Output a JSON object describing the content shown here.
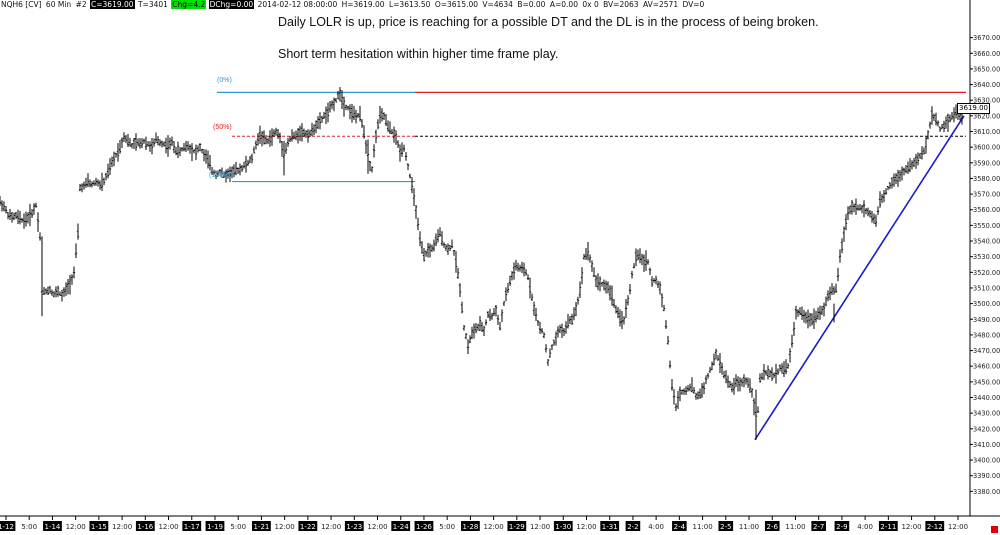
{
  "header": {
    "symbol": "NQH6 [CV]",
    "interval": "60 Min",
    "tag": "#2",
    "close": "C=3619.00",
    "ticks": "T=3401",
    "chg": "Chg=4.2",
    "dchg": "DChg=0.00",
    "datetime": "2014-02-12 08:00:00",
    "high": "H=3619.00",
    "low": "L=3613.50",
    "open": "O=3615.00",
    "volume": "V=4634",
    "bid": "B=0.00",
    "ask": "A=0.00",
    "ox": "0x 0",
    "bv": "BV=2063",
    "av": "AV=2571",
    "dv": "DV=0"
  },
  "annotations": {
    "line1": "Daily LOLR is up, price is reaching for a possible DT and the DL is in the process of being broken.",
    "line2": "Short term hesitation within higher time frame play."
  },
  "fib_labels": {
    "top": "(0%)",
    "mid": "(50%)",
    "bottom": "(100%)"
  },
  "price_tag": "3619.00",
  "colors": {
    "fib_line": "#3399cc",
    "resistance": "#e02020",
    "trendline": "#1a1acc",
    "fib_mid": "#e02020"
  },
  "chart_data": {
    "type": "candlestick-bar",
    "ylim": [
      3370,
      3680
    ],
    "y_ticks": [
      3380,
      3390,
      3400,
      3410,
      3420,
      3430,
      3440,
      3450,
      3460,
      3470,
      3480,
      3490,
      3500,
      3510,
      3520,
      3530,
      3540,
      3550,
      3560,
      3570,
      3580,
      3590,
      3600,
      3610,
      3620,
      3630,
      3640,
      3650,
      3660,
      3670
    ],
    "y_tick_labels": [
      "3380.00",
      "3390.00",
      "3400.00",
      "3410.00",
      "3420.00",
      "3430.00",
      "3440.00",
      "3450.00",
      "3460.00",
      "3470.00",
      "3480.00",
      "3490.00",
      "3500.00",
      "3510.00",
      "3520.00",
      "3530.00",
      "3540.00",
      "3550.00",
      "3560.00",
      "3570.00",
      "3580.00",
      "3590.00",
      "3600.00",
      "3610.00",
      "3620.00",
      "3630.00",
      "3640.00",
      "3650.00",
      "3660.00",
      "3670.00"
    ],
    "x_labels": [
      {
        "t": "1-12",
        "d": 1
      },
      {
        "t": "5:00",
        "d": 0
      },
      {
        "t": "1-14",
        "d": 1
      },
      {
        "t": "12:00",
        "d": 0
      },
      {
        "t": "1-15",
        "d": 1
      },
      {
        "t": "12:00",
        "d": 0
      },
      {
        "t": "1-16",
        "d": 1
      },
      {
        "t": "12:00",
        "d": 0
      },
      {
        "t": "1-17",
        "d": 1
      },
      {
        "t": "1-19",
        "d": 1
      },
      {
        "t": "5:00",
        "d": 0
      },
      {
        "t": "1-21",
        "d": 1
      },
      {
        "t": "12:00",
        "d": 0
      },
      {
        "t": "1-22",
        "d": 1
      },
      {
        "t": "12:00",
        "d": 0
      },
      {
        "t": "1-23",
        "d": 1
      },
      {
        "t": "12:00",
        "d": 0
      },
      {
        "t": "1-24",
        "d": 1
      },
      {
        "t": "1-26",
        "d": 1
      },
      {
        "t": "5:00",
        "d": 0
      },
      {
        "t": "1-28",
        "d": 1
      },
      {
        "t": "12:00",
        "d": 0
      },
      {
        "t": "1-29",
        "d": 1
      },
      {
        "t": "12:00",
        "d": 0
      },
      {
        "t": "1-30",
        "d": 1
      },
      {
        "t": "12:00",
        "d": 0
      },
      {
        "t": "1-31",
        "d": 1
      },
      {
        "t": "2-2",
        "d": 1
      },
      {
        "t": "4:00",
        "d": 0
      },
      {
        "t": "2-4",
        "d": 1
      },
      {
        "t": "11:00",
        "d": 0
      },
      {
        "t": "2-5",
        "d": 1
      },
      {
        "t": "11:00",
        "d": 0
      },
      {
        "t": "2-6",
        "d": 1
      },
      {
        "t": "11:00",
        "d": 0
      },
      {
        "t": "2-7",
        "d": 1
      },
      {
        "t": "2-9",
        "d": 1
      },
      {
        "t": "4:00",
        "d": 0
      },
      {
        "t": "2-11",
        "d": 1
      },
      {
        "t": "12:00",
        "d": 0
      },
      {
        "t": "2-12",
        "d": 1
      },
      {
        "t": "12:00",
        "d": 0
      }
    ],
    "price_path": [
      [
        0,
        3565
      ],
      [
        4,
        3562
      ],
      [
        8,
        3557
      ],
      [
        12,
        3555
      ],
      [
        16,
        3556
      ],
      [
        20,
        3554
      ],
      [
        24,
        3553
      ],
      [
        28,
        3555
      ],
      [
        32,
        3558
      ],
      [
        36,
        3563
      ],
      [
        40,
        3543
      ],
      [
        42,
        3507
      ],
      [
        46,
        3508
      ],
      [
        50,
        3509
      ],
      [
        54,
        3506
      ],
      [
        58,
        3508
      ],
      [
        62,
        3505
      ],
      [
        66,
        3509
      ],
      [
        70,
        3513
      ],
      [
        74,
        3520
      ],
      [
        78,
        3545
      ],
      [
        80,
        3574
      ],
      [
        84,
        3575
      ],
      [
        88,
        3578
      ],
      [
        92,
        3576
      ],
      [
        96,
        3578
      ],
      [
        100,
        3576
      ],
      [
        104,
        3578
      ],
      [
        108,
        3584
      ],
      [
        112,
        3590
      ],
      [
        116,
        3595
      ],
      [
        120,
        3600
      ],
      [
        124,
        3607
      ],
      [
        128,
        3604
      ],
      [
        132,
        3601
      ],
      [
        136,
        3603
      ],
      [
        140,
        3602
      ],
      [
        144,
        3604
      ],
      [
        148,
        3602
      ],
      [
        152,
        3600
      ],
      [
        156,
        3605
      ],
      [
        160,
        3603
      ],
      [
        164,
        3602
      ],
      [
        168,
        3601
      ],
      [
        172,
        3603
      ],
      [
        176,
        3598
      ],
      [
        180,
        3597
      ],
      [
        184,
        3600
      ],
      [
        188,
        3601
      ],
      [
        192,
        3598
      ],
      [
        196,
        3597
      ],
      [
        200,
        3600
      ],
      [
        204,
        3595
      ],
      [
        208,
        3592
      ],
      [
        212,
        3585
      ],
      [
        216,
        3583
      ],
      [
        220,
        3584
      ],
      [
        224,
        3582
      ],
      [
        228,
        3583
      ],
      [
        232,
        3584
      ],
      [
        236,
        3585
      ],
      [
        240,
        3586
      ],
      [
        244,
        3588
      ],
      [
        248,
        3590
      ],
      [
        252,
        3593
      ],
      [
        256,
        3602
      ],
      [
        260,
        3608
      ],
      [
        264,
        3605
      ],
      [
        268,
        3604
      ],
      [
        272,
        3607
      ],
      [
        276,
        3610
      ],
      [
        280,
        3606
      ],
      [
        284,
        3595
      ],
      [
        288,
        3603
      ],
      [
        292,
        3607
      ],
      [
        296,
        3607
      ],
      [
        300,
        3610
      ],
      [
        304,
        3609
      ],
      [
        308,
        3608
      ],
      [
        312,
        3610
      ],
      [
        316,
        3614
      ],
      [
        320,
        3616
      ],
      [
        324,
        3620
      ],
      [
        328,
        3622
      ],
      [
        332,
        3627
      ],
      [
        336,
        3630
      ],
      [
        340,
        3635
      ],
      [
        344,
        3627
      ],
      [
        348,
        3625
      ],
      [
        352,
        3622
      ],
      [
        356,
        3620
      ],
      [
        360,
        3620
      ],
      [
        364,
        3610
      ],
      [
        368,
        3592
      ],
      [
        372,
        3586
      ],
      [
        376,
        3608
      ],
      [
        380,
        3620
      ],
      [
        384,
        3620
      ],
      [
        388,
        3613
      ],
      [
        392,
        3610
      ],
      [
        396,
        3606
      ],
      [
        400,
        3597
      ],
      [
        404,
        3600
      ],
      [
        408,
        3588
      ],
      [
        412,
        3575
      ],
      [
        416,
        3560
      ],
      [
        420,
        3540
      ],
      [
        424,
        3530
      ],
      [
        428,
        3534
      ],
      [
        432,
        3535
      ],
      [
        436,
        3540
      ],
      [
        440,
        3545
      ],
      [
        444,
        3538
      ],
      [
        448,
        3534
      ],
      [
        452,
        3538
      ],
      [
        456,
        3527
      ],
      [
        460,
        3510
      ],
      [
        464,
        3485
      ],
      [
        468,
        3473
      ],
      [
        472,
        3481
      ],
      [
        476,
        3484
      ],
      [
        480,
        3486
      ],
      [
        484,
        3483
      ],
      [
        488,
        3493
      ],
      [
        492,
        3492
      ],
      [
        496,
        3496
      ],
      [
        500,
        3485
      ],
      [
        504,
        3500
      ],
      [
        508,
        3510
      ],
      [
        512,
        3518
      ],
      [
        516,
        3524
      ],
      [
        520,
        3522
      ],
      [
        524,
        3522
      ],
      [
        528,
        3517
      ],
      [
        532,
        3504
      ],
      [
        536,
        3492
      ],
      [
        540,
        3484
      ],
      [
        544,
        3480
      ],
      [
        548,
        3463
      ],
      [
        552,
        3472
      ],
      [
        556,
        3478
      ],
      [
        560,
        3484
      ],
      [
        564,
        3482
      ],
      [
        568,
        3488
      ],
      [
        572,
        3490
      ],
      [
        576,
        3497
      ],
      [
        580,
        3508
      ],
      [
        584,
        3530
      ],
      [
        588,
        3534
      ],
      [
        592,
        3524
      ],
      [
        596,
        3515
      ],
      [
        600,
        3513
      ],
      [
        604,
        3512
      ],
      [
        608,
        3510
      ],
      [
        612,
        3505
      ],
      [
        616,
        3496
      ],
      [
        620,
        3490
      ],
      [
        624,
        3490
      ],
      [
        628,
        3502
      ],
      [
        632,
        3518
      ],
      [
        636,
        3530
      ],
      [
        640,
        3530
      ],
      [
        644,
        3527
      ],
      [
        648,
        3527
      ],
      [
        652,
        3514
      ],
      [
        656,
        3515
      ],
      [
        660,
        3510
      ],
      [
        664,
        3497
      ],
      [
        668,
        3476
      ],
      [
        672,
        3447
      ],
      [
        676,
        3434
      ],
      [
        680,
        3443
      ],
      [
        684,
        3444
      ],
      [
        688,
        3446
      ],
      [
        692,
        3447
      ],
      [
        696,
        3441
      ],
      [
        700,
        3442
      ],
      [
        704,
        3447
      ],
      [
        708,
        3454
      ],
      [
        712,
        3460
      ],
      [
        716,
        3468
      ],
      [
        720,
        3462
      ],
      [
        724,
        3455
      ],
      [
        728,
        3450
      ],
      [
        732,
        3446
      ],
      [
        736,
        3450
      ],
      [
        740,
        3448
      ],
      [
        744,
        3451
      ],
      [
        748,
        3450
      ],
      [
        752,
        3444
      ],
      [
        756,
        3428
      ],
      [
        758,
        3432
      ],
      [
        760,
        3452
      ],
      [
        764,
        3455
      ],
      [
        768,
        3456
      ],
      [
        772,
        3454
      ],
      [
        776,
        3455
      ],
      [
        780,
        3459
      ],
      [
        784,
        3458
      ],
      [
        788,
        3460
      ],
      [
        792,
        3475
      ],
      [
        796,
        3494
      ],
      [
        800,
        3495
      ],
      [
        804,
        3491
      ],
      [
        808,
        3491
      ],
      [
        812,
        3490
      ],
      [
        816,
        3492
      ],
      [
        820,
        3495
      ],
      [
        824,
        3497
      ],
      [
        828,
        3505
      ],
      [
        832,
        3508
      ],
      [
        836,
        3509
      ],
      [
        840,
        3530
      ],
      [
        844,
        3545
      ],
      [
        848,
        3558
      ],
      [
        852,
        3562
      ],
      [
        856,
        3562
      ],
      [
        860,
        3561
      ],
      [
        864,
        3560
      ],
      [
        868,
        3559
      ],
      [
        872,
        3555
      ],
      [
        876,
        3553
      ],
      [
        880,
        3565
      ],
      [
        884,
        3569
      ],
      [
        888,
        3574
      ],
      [
        892,
        3578
      ],
      [
        896,
        3580
      ],
      [
        900,
        3582
      ],
      [
        904,
        3585
      ],
      [
        908,
        3587
      ],
      [
        912,
        3589
      ],
      [
        916,
        3591
      ],
      [
        920,
        3594
      ],
      [
        924,
        3597
      ],
      [
        928,
        3608
      ],
      [
        932,
        3620
      ],
      [
        936,
        3618
      ],
      [
        940,
        3612
      ],
      [
        944,
        3614
      ],
      [
        948,
        3617
      ],
      [
        952,
        3620
      ],
      [
        956,
        3622
      ],
      [
        960,
        3620
      ],
      [
        964,
        3618
      ]
    ],
    "levels": {
      "fib_0": 3635,
      "fib_50": 3607,
      "fib_100": 3578,
      "resistance": 3635,
      "dashed": 3607
    },
    "trendline": {
      "from": [
        755,
        3413
      ],
      "to": [
        964,
        3620
      ]
    }
  }
}
